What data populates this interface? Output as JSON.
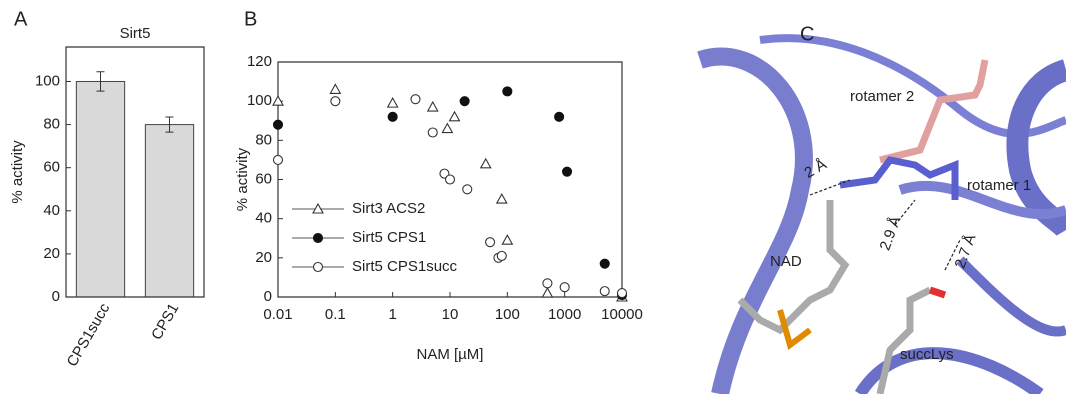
{
  "chart_data": [
    {
      "type": "bar",
      "panel_label": "A",
      "title": "Sirt5",
      "ylabel": "% activity",
      "categories": [
        "CPS1succ",
        "CPS1"
      ],
      "values": [
        100,
        80
      ],
      "errors": [
        4.5,
        3.5
      ],
      "color": "#d9d9d9",
      "ylim": [
        0,
        116
      ],
      "yticks": [
        0,
        20,
        40,
        60,
        80,
        100
      ],
      "grid": false
    },
    {
      "type": "scatter",
      "panel_label": "B",
      "xlabel": "NAM [µM]",
      "ylabel": "% activity",
      "xscale": "log",
      "xlim": [
        0.01,
        10000
      ],
      "xticks": [
        0.01,
        0.1,
        1,
        10,
        100,
        1000,
        10000
      ],
      "ylim": [
        0,
        120
      ],
      "yticks": [
        0,
        20,
        40,
        60,
        80,
        100,
        120
      ],
      "grid": false,
      "legend": "lower left",
      "series": [
        {
          "name": "Sirt3 ACS2",
          "marker": "triangle-open",
          "color": "#333333",
          "x": [
            0.01,
            0.1,
            1,
            5,
            9,
            12,
            42,
            80,
            100,
            500,
            10000
          ],
          "values": [
            100,
            106,
            99,
            97,
            86,
            92,
            68,
            50,
            29,
            2,
            0
          ]
        },
        {
          "name": "Sirt5 CPS1",
          "marker": "circle-filled",
          "color": "#111111",
          "x": [
            0.01,
            1,
            18,
            100,
            800,
            1100,
            5000,
            10000
          ],
          "values": [
            88,
            92,
            100,
            105,
            92,
            64,
            17,
            1
          ]
        },
        {
          "name": "Sirt5 CPS1succ",
          "marker": "circle-open",
          "color": "#333333",
          "x": [
            0.01,
            0.1,
            2.5,
            5,
            8,
            10,
            20,
            50,
            70,
            80,
            500,
            1000,
            5000,
            10000
          ],
          "values": [
            70,
            100,
            101,
            84,
            63,
            60,
            55,
            28,
            20,
            21,
            7,
            5,
            3,
            2
          ]
        }
      ]
    }
  ],
  "structure": {
    "panel_label": "C",
    "labels": [
      "rotamer 2",
      "rotamer 1",
      "NAD",
      "succLys"
    ],
    "distances": [
      "2 Å",
      "2.9 Å",
      "2.7 Å"
    ]
  }
}
